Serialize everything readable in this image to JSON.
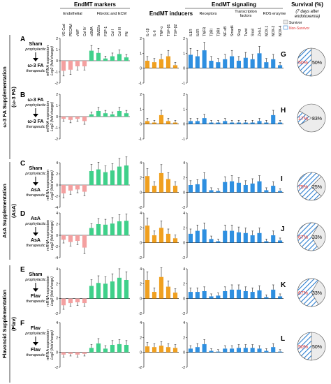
{
  "figure": {
    "headers": {
      "endmt_markers": "EndMT markers",
      "endmt_inducers": "EndMT inducers",
      "endmt_signaling": "EndMT signaling",
      "survival_line1": "Survival (%)",
      "survival_line2": "(7 days after",
      "survival_line3": "endotoxemia)"
    },
    "subheaders": {
      "endothelial": "Endothelial",
      "fibrotic": "Fibrotic and ECM",
      "receptors": "Receptors",
      "transcription1": "Transcription",
      "transcription2": "factors",
      "ros": "ROS enzyme"
    },
    "legend": {
      "survivor": "Survivor",
      "non_survivor": "Non-Survivor"
    },
    "gene_labels": {
      "endothelial": [
        "VE-Cad",
        "PECAM",
        "vWF",
        "Col IV"
      ],
      "fibrotic": [
        "αSMA",
        "SM22α",
        "FSP-1",
        "Col I",
        "Col III",
        "FN"
      ],
      "inducers": [
        "IL-1β",
        "IL-6",
        "TNF-α",
        "TGF-β1",
        "TGF-β2"
      ],
      "signaling": [
        "IL1R",
        "IL6R",
        "TNFR",
        "TβRI",
        "TβRII",
        "NF-κB",
        "Smad4",
        "Slug",
        "Twist",
        "Snail",
        "Zeb-1",
        "NOX-1",
        "NOX-2",
        "NOX-4"
      ]
    },
    "y_label_line1": "mRNA expression",
    "y_label_line2": "Log2 (fold change)",
    "group_labels": {
      "omega": "ω-3 FA Supplementation",
      "omega_abbr": "(ω-3 FA)",
      "asa": "AsA Supplementation",
      "asa_abbr": "(AsA)",
      "flav": "Flavonoid Supplementation",
      "flav_abbr": "(Flav)"
    },
    "colors": {
      "endothelial": "#f4a0a0",
      "fibrotic": "#3fd08a",
      "inducers": "#f0a020",
      "signaling": "#2e8fe0",
      "survivor": "#ececec",
      "non_survivor": "#2e7fd0"
    },
    "rows": [
      {
        "letter": "A",
        "top": "Sham",
        "top_sub": "prophylactic",
        "bottom": "ω-3 FA",
        "bottom_sub": "therapeutic",
        "markers_ticks": [
          "2",
          "1",
          "0",
          "-1",
          "-2"
        ],
        "inducers_ticks": [
          "2",
          "1",
          "0",
          "-1"
        ],
        "signaling_ticks": [
          "2",
          "1",
          "0",
          "-1"
        ],
        "pie_letter": "G",
        "survivor_pct": 50,
        "survivor_label": "50%",
        "non_survivor_label": "50%"
      },
      {
        "letter": "B",
        "top": "ω-3 FA",
        "top_sub": "prophylactic",
        "bottom": "ω-3 FA",
        "bottom_sub": "therapeutic",
        "markers_ticks": [
          "2",
          "1",
          "0",
          "-1",
          "-2"
        ],
        "inducers_ticks": [
          "2",
          "1",
          "0",
          "-1"
        ],
        "signaling_ticks": [
          "2",
          "1",
          "0",
          "-1"
        ],
        "pie_letter": "H",
        "survivor_pct": 83,
        "survivor_label": "83%",
        "non_survivor_label": "17%"
      },
      {
        "letter": "C",
        "top": "Sham",
        "top_sub": "prophylactic",
        "bottom": "AsA",
        "bottom_sub": "therapeutic",
        "markers_ticks": [
          "4",
          "2",
          "0",
          "-2",
          "-4"
        ],
        "inducers_ticks": [
          "4",
          "2",
          "0",
          "-2"
        ],
        "signaling_ticks": [
          "4",
          "2",
          "0",
          "-2"
        ],
        "pie_letter": "I",
        "survivor_pct": 25,
        "survivor_label": "25%",
        "non_survivor_label": "75%"
      },
      {
        "letter": "D",
        "top": "AsA",
        "top_sub": "prophylactic",
        "bottom": "AsA",
        "bottom_sub": "therapeutic",
        "markers_ticks": [
          "4",
          "2",
          "0",
          "-2",
          "-4"
        ],
        "inducers_ticks": [
          "4",
          "2",
          "0",
          "-2"
        ],
        "signaling_ticks": [
          "4",
          "2",
          "0",
          "-2"
        ],
        "pie_letter": "J",
        "survivor_pct": 33,
        "survivor_label": "33%",
        "non_survivor_label": "67%"
      },
      {
        "letter": "E",
        "top": "Sham",
        "top_sub": "prophylactic",
        "bottom": "Flav",
        "bottom_sub": "therapeutic",
        "markers_ticks": [
          "4",
          "2",
          "0",
          "-2"
        ],
        "inducers_ticks": [
          "4",
          "2",
          "0",
          "-2"
        ],
        "signaling_ticks": [
          "4",
          "2",
          "0",
          "-2"
        ],
        "pie_letter": "K",
        "survivor_pct": 33,
        "survivor_label": "33%",
        "non_survivor_label": "67%"
      },
      {
        "letter": "F",
        "top": "Flav",
        "top_sub": "prophylactic",
        "bottom": "Flav",
        "bottom_sub": "therapeutic",
        "markers_ticks": [
          "4",
          "2",
          "0",
          "-2"
        ],
        "inducers_ticks": [
          "4",
          "2",
          "0",
          "-2"
        ],
        "signaling_ticks": [
          "4",
          "2",
          "0",
          "-2"
        ],
        "pie_letter": "L",
        "survivor_pct": 50,
        "survivor_label": "50%",
        "non_survivor_label": "50%"
      }
    ]
  },
  "chart_data": [
    {
      "type": "bar",
      "panel": "A",
      "markers": [
        -0.9,
        -0.8,
        -0.5,
        -0.5,
        0.9,
        0.7,
        0.2,
        0.4,
        0.6,
        0.3
      ],
      "inducers": [
        0.5,
        0.4,
        0.6,
        0.8,
        0.2
      ],
      "signaling": [
        0.9,
        0.8,
        1.2,
        0.5,
        0.4,
        0.6,
        0.8,
        0.5,
        0.7,
        0.6,
        1.0,
        0.4,
        0.6,
        0.2
      ]
    },
    {
      "type": "bar",
      "panel": "B",
      "markers": [
        -0.2,
        -0.3,
        -0.2,
        -0.4,
        0.2,
        0.5,
        0.3,
        0.2,
        0.5,
        0.3
      ],
      "inducers": [
        0.2,
        0.1,
        0.6,
        0.2,
        0.1
      ],
      "signaling": [
        0.2,
        0.2,
        0.4,
        0.1,
        0.1,
        0.2,
        0.1,
        0.1,
        0.1,
        0.1,
        0.2,
        0.1,
        0.6,
        0.1
      ]
    },
    {
      "type": "bar",
      "panel": "C",
      "markers": [
        -1.5,
        -1.0,
        -0.8,
        -1.2,
        2.5,
        2.8,
        2.3,
        2.6,
        3.3,
        3.5
      ],
      "inducers": [
        2.2,
        0.9,
        2.6,
        1.8,
        0.9
      ],
      "signaling": [
        1.0,
        1.1,
        1.8,
        0.3,
        0.2,
        1.4,
        1.5,
        1.3,
        1.0,
        1.2,
        1.5,
        0.3,
        0.9,
        0.2
      ]
    },
    {
      "type": "bar",
      "panel": "D",
      "markers": [
        -0.8,
        -1.2,
        -1.0,
        -2.2,
        1.3,
        2.0,
        1.9,
        2.1,
        2.5,
        2.6
      ],
      "inducers": [
        2.3,
        1.0,
        2.0,
        1.2,
        0.6
      ],
      "signaling": [
        1.2,
        1.6,
        1.8,
        0.5,
        0.2,
        1.6,
        1.6,
        1.4,
        1.3,
        1.0,
        1.3,
        0.2,
        1.0,
        0.3
      ]
    },
    {
      "type": "bar",
      "panel": "E",
      "markers": [
        -0.9,
        -0.6,
        -0.5,
        -0.6,
        1.7,
        2.1,
        2.0,
        2.3,
        2.8,
        2.5
      ],
      "inducers": [
        2.5,
        0.9,
        2.9,
        1.6,
        0.8
      ],
      "signaling": [
        0.9,
        0.9,
        1.0,
        0.3,
        0.4,
        1.0,
        1.2,
        1.2,
        1.0,
        0.9,
        1.1,
        0.2,
        1.2,
        0.3
      ]
    },
    {
      "type": "bar",
      "panel": "F",
      "markers": [
        -0.3,
        -0.2,
        -0.3,
        -0.2,
        0.6,
        1.2,
        0.5,
        1.0,
        1.1,
        1.0
      ],
      "inducers": [
        0.8,
        0.7,
        0.9,
        0.7,
        0.6
      ],
      "signaling": [
        0.5,
        0.7,
        1.1,
        0.2,
        0.1,
        0.5,
        0.5,
        0.6,
        0.6,
        0.6,
        0.5,
        0.2,
        0.7,
        0.1
      ]
    }
  ]
}
